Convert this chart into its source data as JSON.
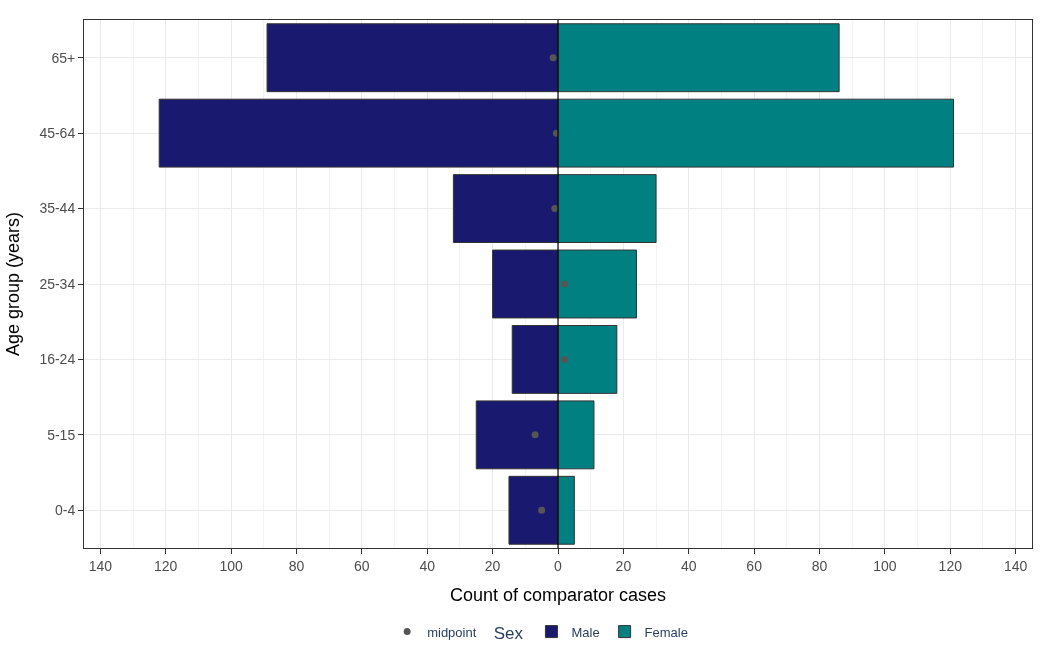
{
  "chart_data": {
    "type": "bar",
    "orientation": "horizontal",
    "xlabel": "Count of comparator cases",
    "ylabel": "Age group (years)",
    "legend_title": "Sex",
    "categories": [
      "65+",
      "45-64",
      "35-44",
      "25-34",
      "16-24",
      "5-15",
      "0-4"
    ],
    "series": [
      {
        "name": "midpoint",
        "type": "scatter",
        "marker": "circle",
        "color": "#555555",
        "values": [
          -1.5,
          -0.5,
          -1,
          2,
          2,
          -7,
          -5
        ]
      },
      {
        "name": "Male",
        "color": "#191970",
        "values": [
          -89,
          -122,
          -32,
          -20,
          -14,
          -25,
          -15
        ]
      },
      {
        "name": "Female",
        "color": "#008080",
        "values": [
          86,
          121,
          30,
          24,
          18,
          11,
          5
        ]
      }
    ],
    "xlim": [
      -145,
      145
    ],
    "xticks": [
      {
        "value": -140,
        "label": "140"
      },
      {
        "value": -120,
        "label": "120"
      },
      {
        "value": -100,
        "label": "100"
      },
      {
        "value": -80,
        "label": "80"
      },
      {
        "value": -60,
        "label": "60"
      },
      {
        "value": -40,
        "label": "40"
      },
      {
        "value": -20,
        "label": "20"
      },
      0,
      20,
      40,
      60,
      80,
      100,
      120,
      140
    ],
    "ref_lines": [
      {
        "axis": "x",
        "value": 0,
        "color": "#000000"
      }
    ],
    "grid": true,
    "legend": "bottom",
    "stacked": true
  }
}
